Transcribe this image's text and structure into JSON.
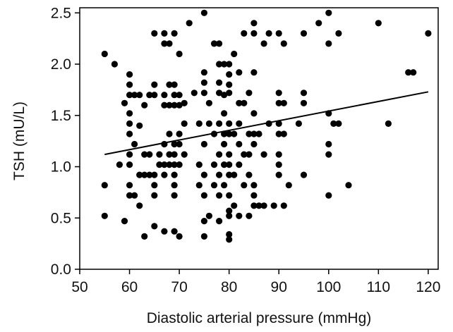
{
  "chart_data": {
    "type": "scatter",
    "title": "",
    "xlabel": "Diastolic arterial pressure (mmHg)",
    "ylabel": "TSH (mU/L)",
    "xlim": [
      50,
      122
    ],
    "ylim": [
      0,
      2.55
    ],
    "x_ticks": [
      50,
      60,
      70,
      80,
      90,
      100,
      110,
      120
    ],
    "x_tick_labels": [
      "50",
      "60",
      "70",
      "80",
      "90",
      "100",
      "110",
      "120"
    ],
    "y_ticks": [
      0,
      0.5,
      1.0,
      1.5,
      2.0,
      2.5
    ],
    "y_tick_labels": [
      "0.0",
      "0.5",
      "1.0",
      "1.5",
      "2.0",
      "2.5"
    ],
    "grid": false,
    "marker_color": "#000000",
    "trendline": {
      "x": [
        55,
        120
      ],
      "y": [
        1.12,
        1.73
      ]
    },
    "points": [
      {
        "x": 55,
        "y": 2.1
      },
      {
        "x": 55,
        "y": 0.82
      },
      {
        "x": 55,
        "y": 0.52
      },
      {
        "x": 57,
        "y": 2.0
      },
      {
        "x": 58,
        "y": 1.02
      },
      {
        "x": 59,
        "y": 1.62
      },
      {
        "x": 59,
        "y": 0.47
      },
      {
        "x": 60,
        "y": 1.9
      },
      {
        "x": 60,
        "y": 1.8
      },
      {
        "x": 60,
        "y": 1.7
      },
      {
        "x": 60,
        "y": 1.52
      },
      {
        "x": 60,
        "y": 1.42
      },
      {
        "x": 60,
        "y": 1.32
      },
      {
        "x": 60,
        "y": 1.12
      },
      {
        "x": 60,
        "y": 1.02
      },
      {
        "x": 60,
        "y": 0.82
      },
      {
        "x": 60,
        "y": 0.72
      },
      {
        "x": 61,
        "y": 1.7
      },
      {
        "x": 61,
        "y": 1.22
      },
      {
        "x": 61,
        "y": 0.72
      },
      {
        "x": 62,
        "y": 1.7
      },
      {
        "x": 62,
        "y": 1.4
      },
      {
        "x": 62,
        "y": 0.92
      },
      {
        "x": 62,
        "y": 0.62
      },
      {
        "x": 63,
        "y": 1.6
      },
      {
        "x": 63,
        "y": 1.12
      },
      {
        "x": 63,
        "y": 0.92
      },
      {
        "x": 63,
        "y": 0.32
      },
      {
        "x": 64,
        "y": 1.7
      },
      {
        "x": 64,
        "y": 1.12
      },
      {
        "x": 64,
        "y": 0.92
      },
      {
        "x": 65,
        "y": 2.3
      },
      {
        "x": 65,
        "y": 1.8
      },
      {
        "x": 65,
        "y": 1.7
      },
      {
        "x": 65,
        "y": 0.92
      },
      {
        "x": 65,
        "y": 0.82
      },
      {
        "x": 65,
        "y": 0.72
      },
      {
        "x": 65,
        "y": 0.42
      },
      {
        "x": 66,
        "y": 1.12
      },
      {
        "x": 66,
        "y": 1.02
      },
      {
        "x": 67,
        "y": 2.3
      },
      {
        "x": 67,
        "y": 2.2
      },
      {
        "x": 67,
        "y": 1.7
      },
      {
        "x": 67,
        "y": 1.6
      },
      {
        "x": 67,
        "y": 1.22
      },
      {
        "x": 67,
        "y": 1.02
      },
      {
        "x": 67,
        "y": 0.92
      },
      {
        "x": 67,
        "y": 0.37
      },
      {
        "x": 68,
        "y": 2.2
      },
      {
        "x": 68,
        "y": 1.8
      },
      {
        "x": 68,
        "y": 1.6
      },
      {
        "x": 68,
        "y": 1.32
      },
      {
        "x": 68,
        "y": 1.12
      },
      {
        "x": 68,
        "y": 1.02
      },
      {
        "x": 69,
        "y": 2.3
      },
      {
        "x": 69,
        "y": 1.8
      },
      {
        "x": 69,
        "y": 1.7
      },
      {
        "x": 69,
        "y": 1.6
      },
      {
        "x": 69,
        "y": 1.22
      },
      {
        "x": 69,
        "y": 1.12
      },
      {
        "x": 69,
        "y": 1.02
      },
      {
        "x": 69,
        "y": 0.92
      },
      {
        "x": 69,
        "y": 0.82
      },
      {
        "x": 69,
        "y": 0.72
      },
      {
        "x": 69,
        "y": 0.37
      },
      {
        "x": 70,
        "y": 2.1
      },
      {
        "x": 70,
        "y": 1.7
      },
      {
        "x": 70,
        "y": 1.6
      },
      {
        "x": 70,
        "y": 1.32
      },
      {
        "x": 70,
        "y": 1.22
      },
      {
        "x": 70,
        "y": 1.02
      },
      {
        "x": 70,
        "y": 0.32
      },
      {
        "x": 71,
        "y": 1.62
      },
      {
        "x": 71,
        "y": 1.42
      },
      {
        "x": 71,
        "y": 1.12
      },
      {
        "x": 72,
        "y": 2.4
      },
      {
        "x": 73,
        "y": 1.72
      },
      {
        "x": 74,
        "y": 1.42
      },
      {
        "x": 74,
        "y": 1.02
      },
      {
        "x": 74,
        "y": 0.82
      },
      {
        "x": 75,
        "y": 2.5
      },
      {
        "x": 75,
        "y": 1.92
      },
      {
        "x": 75,
        "y": 1.82
      },
      {
        "x": 75,
        "y": 1.72
      },
      {
        "x": 75,
        "y": 1.22
      },
      {
        "x": 75,
        "y": 0.92
      },
      {
        "x": 75,
        "y": 0.72
      },
      {
        "x": 75,
        "y": 0.47
      },
      {
        "x": 75,
        "y": 0.32
      },
      {
        "x": 76,
        "y": 1.62
      },
      {
        "x": 76,
        "y": 1.42
      },
      {
        "x": 76,
        "y": 0.52
      },
      {
        "x": 77,
        "y": 2.2
      },
      {
        "x": 77,
        "y": 1.32
      },
      {
        "x": 77,
        "y": 1.02
      },
      {
        "x": 77,
        "y": 0.82
      },
      {
        "x": 78,
        "y": 2.2
      },
      {
        "x": 78,
        "y": 2.0
      },
      {
        "x": 78,
        "y": 1.82
      },
      {
        "x": 78,
        "y": 1.72
      },
      {
        "x": 78,
        "y": 1.42
      },
      {
        "x": 78,
        "y": 1.12
      },
      {
        "x": 78,
        "y": 0.92
      },
      {
        "x": 78,
        "y": 0.72
      },
      {
        "x": 78,
        "y": 0.47
      },
      {
        "x": 79,
        "y": 2.0
      },
      {
        "x": 79,
        "y": 1.7
      },
      {
        "x": 79,
        "y": 1.52
      },
      {
        "x": 79,
        "y": 1.32
      },
      {
        "x": 79,
        "y": 1.22
      },
      {
        "x": 79,
        "y": 1.02
      },
      {
        "x": 79,
        "y": 0.82
      },
      {
        "x": 80,
        "y": 2.0
      },
      {
        "x": 80,
        "y": 1.9
      },
      {
        "x": 80,
        "y": 1.8
      },
      {
        "x": 80,
        "y": 1.72
      },
      {
        "x": 80,
        "y": 1.42
      },
      {
        "x": 80,
        "y": 1.32
      },
      {
        "x": 80,
        "y": 1.12
      },
      {
        "x": 80,
        "y": 1.02
      },
      {
        "x": 80,
        "y": 0.92
      },
      {
        "x": 80,
        "y": 0.72
      },
      {
        "x": 80,
        "y": 0.57
      },
      {
        "x": 80,
        "y": 0.52
      },
      {
        "x": 80,
        "y": 0.34
      },
      {
        "x": 80,
        "y": 0.29
      },
      {
        "x": 81,
        "y": 2.1
      },
      {
        "x": 81,
        "y": 1.32
      },
      {
        "x": 81,
        "y": 0.92
      },
      {
        "x": 81,
        "y": 0.62
      },
      {
        "x": 82,
        "y": 1.92
      },
      {
        "x": 82,
        "y": 1.62
      },
      {
        "x": 82,
        "y": 1.42
      },
      {
        "x": 82,
        "y": 1.22
      },
      {
        "x": 82,
        "y": 1.02
      },
      {
        "x": 82,
        "y": 0.52
      },
      {
        "x": 83,
        "y": 2.3
      },
      {
        "x": 83,
        "y": 1.62
      },
      {
        "x": 83,
        "y": 1.12
      },
      {
        "x": 83,
        "y": 0.82
      },
      {
        "x": 84,
        "y": 1.72
      },
      {
        "x": 84,
        "y": 1.32
      },
      {
        "x": 84,
        "y": 1.12
      },
      {
        "x": 84,
        "y": 0.92
      },
      {
        "x": 84,
        "y": 0.52
      },
      {
        "x": 85,
        "y": 2.4
      },
      {
        "x": 85,
        "y": 2.3
      },
      {
        "x": 85,
        "y": 1.92
      },
      {
        "x": 85,
        "y": 1.52
      },
      {
        "x": 85,
        "y": 1.32
      },
      {
        "x": 85,
        "y": 1.22
      },
      {
        "x": 85,
        "y": 0.82
      },
      {
        "x": 85,
        "y": 0.72
      },
      {
        "x": 85,
        "y": 0.62
      },
      {
        "x": 86,
        "y": 1.32
      },
      {
        "x": 86,
        "y": 0.62
      },
      {
        "x": 87,
        "y": 2.2
      },
      {
        "x": 87,
        "y": 1.12
      },
      {
        "x": 87,
        "y": 0.62
      },
      {
        "x": 88,
        "y": 2.3
      },
      {
        "x": 88,
        "y": 1.42
      },
      {
        "x": 89,
        "y": 0.62
      },
      {
        "x": 90,
        "y": 2.3
      },
      {
        "x": 90,
        "y": 1.72
      },
      {
        "x": 90,
        "y": 1.62
      },
      {
        "x": 90,
        "y": 1.42
      },
      {
        "x": 90,
        "y": 1.32
      },
      {
        "x": 90,
        "y": 1.12
      },
      {
        "x": 90,
        "y": 1.02
      },
      {
        "x": 90,
        "y": 0.92
      },
      {
        "x": 91,
        "y": 2.2
      },
      {
        "x": 91,
        "y": 1.62
      },
      {
        "x": 91,
        "y": 1.32
      },
      {
        "x": 91,
        "y": 0.62
      },
      {
        "x": 92,
        "y": 0.82
      },
      {
        "x": 94,
        "y": 1.42
      },
      {
        "x": 95,
        "y": 2.3
      },
      {
        "x": 95,
        "y": 1.72
      },
      {
        "x": 95,
        "y": 1.62
      },
      {
        "x": 95,
        "y": 0.92
      },
      {
        "x": 98,
        "y": 2.4
      },
      {
        "x": 100,
        "y": 2.5
      },
      {
        "x": 100,
        "y": 2.2
      },
      {
        "x": 100,
        "y": 1.52
      },
      {
        "x": 100,
        "y": 1.22
      },
      {
        "x": 100,
        "y": 1.12
      },
      {
        "x": 100,
        "y": 0.72
      },
      {
        "x": 101,
        "y": 1.42
      },
      {
        "x": 102,
        "y": 2.3
      },
      {
        "x": 102,
        "y": 1.42
      },
      {
        "x": 104,
        "y": 0.82
      },
      {
        "x": 110,
        "y": 2.4
      },
      {
        "x": 112,
        "y": 1.42
      },
      {
        "x": 116,
        "y": 1.92
      },
      {
        "x": 117,
        "y": 1.92
      },
      {
        "x": 120,
        "y": 2.3
      }
    ]
  }
}
